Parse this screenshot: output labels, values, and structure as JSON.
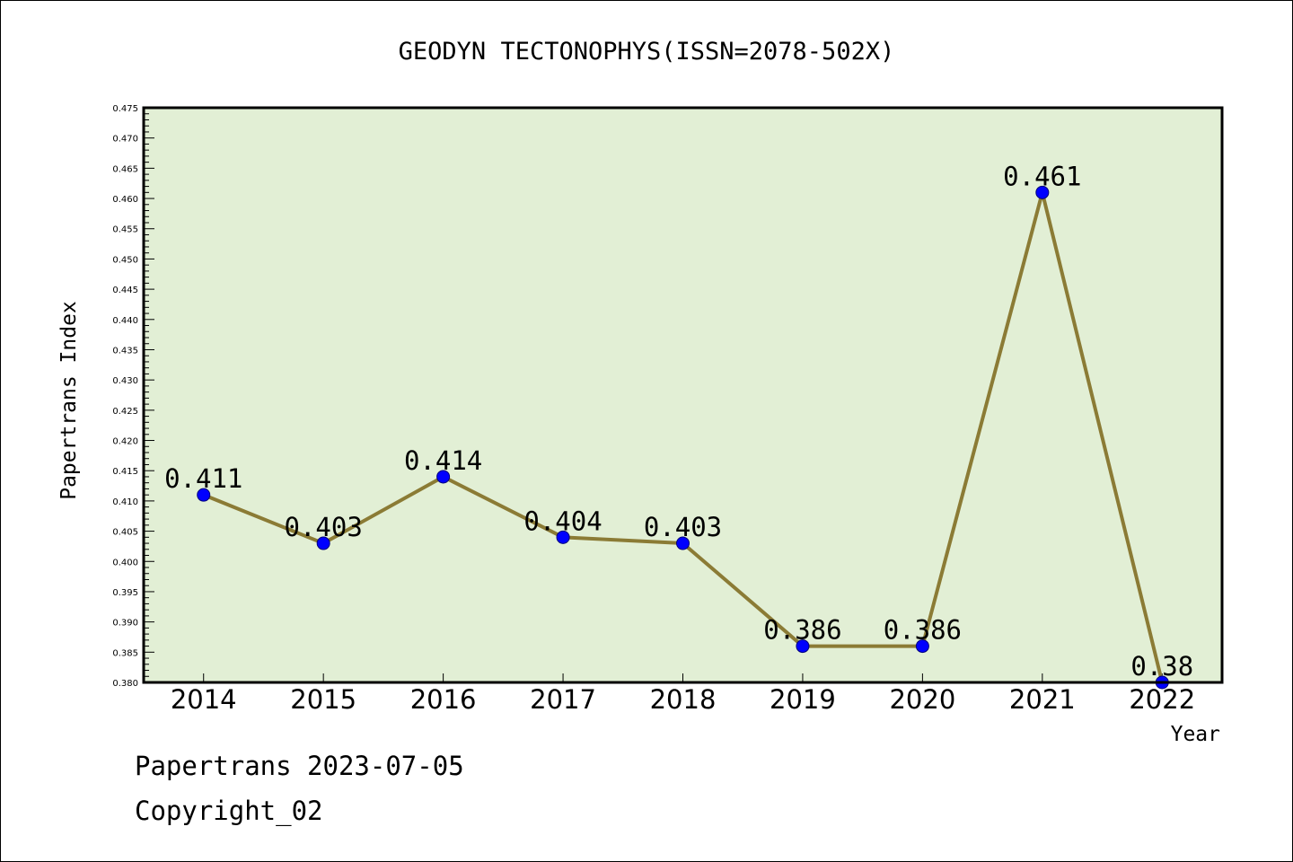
{
  "footer": {
    "date_line": "Papertrans 2023-07-05",
    "copyright_line": "Copyright_02"
  },
  "chart_data": {
    "type": "line",
    "title": "GEODYN TECTONOPHYS(ISSN=2078-502X)",
    "xlabel": "Year",
    "ylabel": "Papertrans Index",
    "categories": [
      "2014",
      "2015",
      "2016",
      "2017",
      "2018",
      "2019",
      "2020",
      "2021",
      "2022"
    ],
    "series": [
      {
        "values": [
          0.411,
          0.403,
          0.414,
          0.404,
          0.403,
          0.386,
          0.386,
          0.461,
          0.38
        ]
      }
    ],
    "data_labels": [
      "0.411",
      "0.403",
      "0.414",
      "0.404",
      "0.403",
      "0.386",
      "0.386",
      "0.461",
      "0.38"
    ],
    "y_tick_labels": [
      "0.380",
      "0.385",
      "0.390",
      "0.395",
      "0.400",
      "0.405",
      "0.410",
      "0.415",
      "0.420",
      "0.425",
      "0.430",
      "0.435",
      "0.440",
      "0.445",
      "0.450",
      "0.455",
      "0.460",
      "0.465",
      "0.470",
      "0.475"
    ],
    "ylim": [
      0.38,
      0.475
    ],
    "y_major_step": 0.005,
    "y_minor_step": 0.001,
    "grid": false,
    "legend": "none",
    "colors": {
      "plot_background": "#e2efd5",
      "line": "#8b7b35",
      "marker": "#0000ff",
      "marker_edge": "#00007a"
    }
  }
}
